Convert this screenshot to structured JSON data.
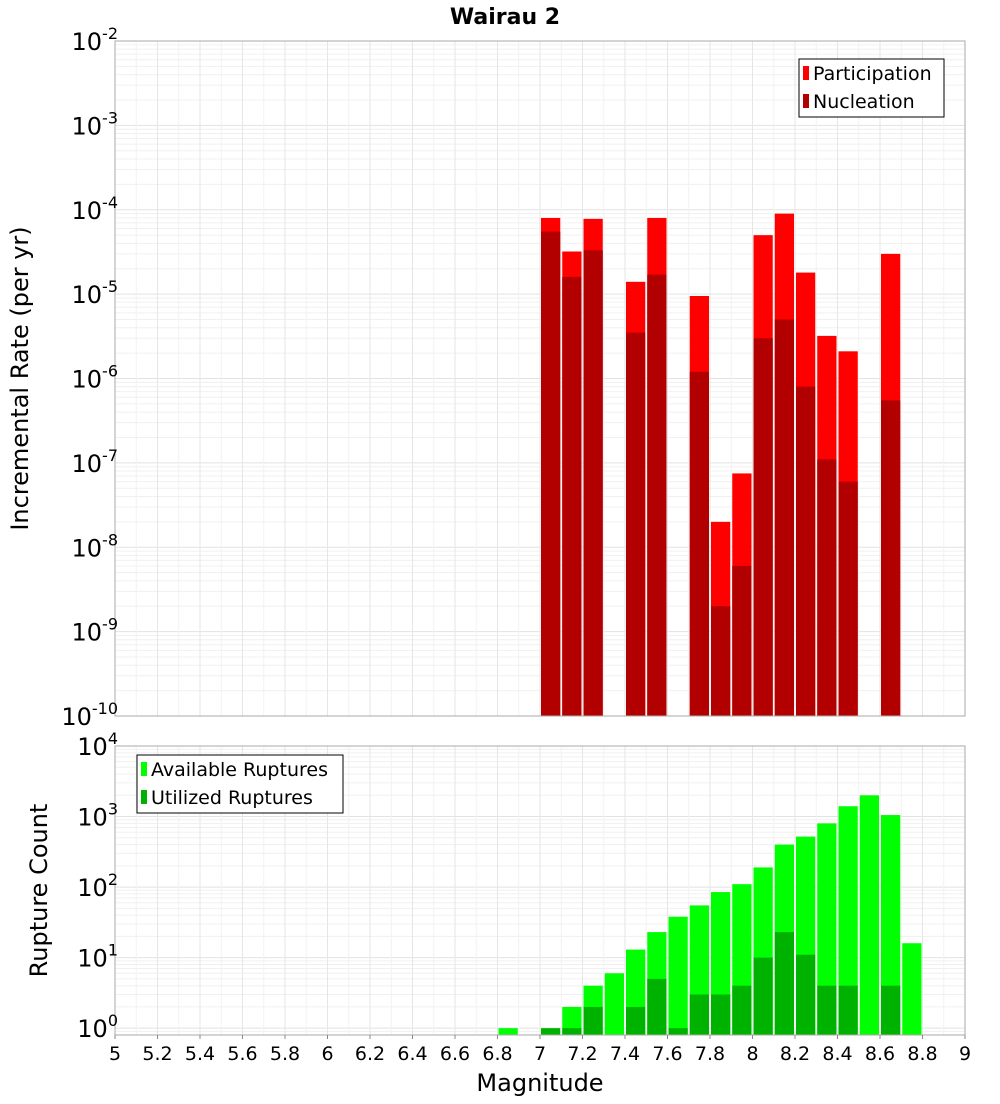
{
  "title": "Wairau 2",
  "chart_data": [
    {
      "type": "bar",
      "ylabel": "Incremental Rate (per yr)",
      "yscale": "log",
      "ylim": [
        1e-10,
        0.01
      ],
      "xlim": [
        5,
        9
      ],
      "grid": true,
      "legend_position": "top-right",
      "y_ticks": [
        {
          "base": "10",
          "exp": "-10"
        },
        {
          "base": "10",
          "exp": "-9"
        },
        {
          "base": "10",
          "exp": "-8"
        },
        {
          "base": "10",
          "exp": "-7"
        },
        {
          "base": "10",
          "exp": "-6"
        },
        {
          "base": "10",
          "exp": "-5"
        },
        {
          "base": "10",
          "exp": "-4"
        },
        {
          "base": "10",
          "exp": "-3"
        },
        {
          "base": "10",
          "exp": "-2"
        }
      ],
      "x": [
        7.05,
        7.15,
        7.25,
        7.45,
        7.55,
        7.75,
        7.85,
        7.95,
        8.05,
        8.15,
        8.25,
        8.35,
        8.45,
        8.65
      ],
      "series": [
        {
          "name": "Participation",
          "color": "#ff0000",
          "values": [
            8e-05,
            3.2e-05,
            7.8e-05,
            1.4e-05,
            8e-05,
            9.5e-06,
            2e-08,
            7.5e-08,
            5e-05,
            9e-05,
            1.8e-05,
            3.2e-06,
            2.1e-06,
            3e-05
          ]
        },
        {
          "name": "Nucleation",
          "color": "#b20000",
          "values": [
            5.5e-05,
            1.6e-05,
            3.3e-05,
            3.5e-06,
            1.7e-05,
            1.2e-06,
            2e-09,
            6e-09,
            3e-06,
            5e-06,
            8e-07,
            1.1e-07,
            6e-08,
            5.5e-07
          ]
        }
      ]
    },
    {
      "type": "bar",
      "ylabel": "Rupture Count",
      "xlabel": "Magnitude",
      "yscale": "log",
      "ylim": [
        0.8,
        10000
      ],
      "xlim": [
        5,
        9
      ],
      "grid": true,
      "legend_position": "top-left",
      "y_ticks": [
        {
          "base": "10",
          "exp": "0"
        },
        {
          "base": "10",
          "exp": "1"
        },
        {
          "base": "10",
          "exp": "2"
        },
        {
          "base": "10",
          "exp": "3"
        },
        {
          "base": "10",
          "exp": "4"
        }
      ],
      "x_ticks": [
        "5",
        "5.2",
        "5.4",
        "5.6",
        "5.8",
        "6",
        "6.2",
        "6.4",
        "6.6",
        "6.8",
        "7",
        "7.2",
        "7.4",
        "7.6",
        "7.8",
        "8",
        "8.2",
        "8.4",
        "8.6",
        "8.8",
        "9"
      ],
      "series": [
        {
          "name": "Available Ruptures",
          "color": "#00ff00",
          "x": [
            6.85,
            7.15,
            7.25,
            7.35,
            7.45,
            7.55,
            7.65,
            7.75,
            7.85,
            7.95,
            8.05,
            8.15,
            8.25,
            8.35,
            8.45,
            8.55,
            8.65,
            8.75
          ],
          "values": [
            1,
            2,
            4,
            6,
            13,
            23,
            38,
            55,
            85,
            110,
            190,
            400,
            520,
            800,
            1400,
            2000,
            1050,
            16
          ]
        },
        {
          "name": "Utilized Ruptures",
          "color": "#00b200",
          "x": [
            7.05,
            7.15,
            7.25,
            7.45,
            7.55,
            7.65,
            7.75,
            7.85,
            7.95,
            8.05,
            8.15,
            8.25,
            8.35,
            8.45,
            8.65
          ],
          "values": [
            1,
            1,
            2,
            2,
            5,
            1,
            3,
            3,
            4,
            10,
            23,
            11,
            4,
            4,
            4
          ]
        }
      ]
    }
  ]
}
